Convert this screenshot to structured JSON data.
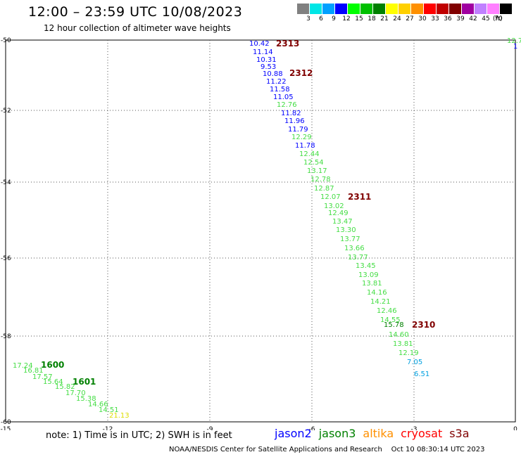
{
  "header": {
    "title": "12:00 – 23:59 UTC 10/08/2023",
    "subtitle": "12 hour collection of altimeter wave heights"
  },
  "color_scale": {
    "unit": "(ft)",
    "bins": [
      {
        "label": "3",
        "color": "#808080"
      },
      {
        "label": "6",
        "color": "#00e6e6"
      },
      {
        "label": "9",
        "color": "#00a0ff"
      },
      {
        "label": "12",
        "color": "#0000ff"
      },
      {
        "label": "15",
        "color": "#00ff00"
      },
      {
        "label": "18",
        "color": "#00c000"
      },
      {
        "label": "21",
        "color": "#008000"
      },
      {
        "label": "24",
        "color": "#ffff00"
      },
      {
        "label": "27",
        "color": "#ffd000"
      },
      {
        "label": "30",
        "color": "#ff9000"
      },
      {
        "label": "33",
        "color": "#ff0000"
      },
      {
        "label": "36",
        "color": "#c00000"
      },
      {
        "label": "39",
        "color": "#800000"
      },
      {
        "label": "42",
        "color": "#a000a0"
      },
      {
        "label": "45",
        "color": "#c080ff"
      },
      {
        "label": "70",
        "color": "#ff80ff"
      },
      {
        "label": "",
        "color": "#000000"
      }
    ]
  },
  "map": {
    "lon_ticks": [
      "-15",
      "-12",
      "-9",
      "-6",
      "-3",
      "0"
    ],
    "lat_ticks": [
      "-50",
      "-52",
      "-54",
      "-56",
      "-58",
      "-60"
    ],
    "passes": [
      {
        "label": "2313",
        "color": "#800000"
      },
      {
        "label": "2312",
        "color": "#800000"
      },
      {
        "label": "2311",
        "color": "#800000"
      },
      {
        "label": "2310",
        "color": "#800000"
      },
      {
        "label": "1600",
        "color": "#008000"
      },
      {
        "label": "1601",
        "color": "#008000"
      }
    ],
    "readings": [
      {
        "v": "10.42",
        "c": "#0000ff"
      },
      {
        "v": "11.14",
        "c": "#0000ff"
      },
      {
        "v": "10.31",
        "c": "#0000ff"
      },
      {
        "v": "9.53",
        "c": "#0000ff"
      },
      {
        "v": "10.88",
        "c": "#0000ff"
      },
      {
        "v": "11.22",
        "c": "#0000ff"
      },
      {
        "v": "11.58",
        "c": "#0000ff"
      },
      {
        "v": "11.05",
        "c": "#0000ff"
      },
      {
        "v": "12.76",
        "c": "#44dd44"
      },
      {
        "v": "11.82",
        "c": "#0000ff"
      },
      {
        "v": "11.96",
        "c": "#0000ff"
      },
      {
        "v": "11.79",
        "c": "#0000ff"
      },
      {
        "v": "12.29",
        "c": "#44dd44"
      },
      {
        "v": "11.78",
        "c": "#0000ff"
      },
      {
        "v": "12.44",
        "c": "#44dd44"
      },
      {
        "v": "12.54",
        "c": "#44dd44"
      },
      {
        "v": "13.17",
        "c": "#44dd44"
      },
      {
        "v": "12.78",
        "c": "#44dd44"
      },
      {
        "v": "12.87",
        "c": "#44dd44"
      },
      {
        "v": "12.07",
        "c": "#44dd44"
      },
      {
        "v": "13.02",
        "c": "#44dd44"
      },
      {
        "v": "12.49",
        "c": "#44dd44"
      },
      {
        "v": "13.47",
        "c": "#44dd44"
      },
      {
        "v": "13.30",
        "c": "#44dd44"
      },
      {
        "v": "13.77",
        "c": "#44dd44"
      },
      {
        "v": "13.66",
        "c": "#44dd44"
      },
      {
        "v": "13.77",
        "c": "#44dd44"
      },
      {
        "v": "13.45",
        "c": "#44dd44"
      },
      {
        "v": "13.09",
        "c": "#44dd44"
      },
      {
        "v": "13.81",
        "c": "#44dd44"
      },
      {
        "v": "14.16",
        "c": "#44dd44"
      },
      {
        "v": "14.21",
        "c": "#44dd44"
      },
      {
        "v": "12.46",
        "c": "#44dd44"
      },
      {
        "v": "14.55",
        "c": "#44dd44"
      },
      {
        "v": "15.78",
        "c": "#008000"
      },
      {
        "v": "14.60",
        "c": "#44dd44"
      },
      {
        "v": "13.81",
        "c": "#44dd44"
      },
      {
        "v": "12.19",
        "c": "#44dd44"
      },
      {
        "v": "7.05",
        "c": "#00a0e0"
      },
      {
        "v": "6.51",
        "c": "#00a0e0"
      },
      {
        "v": "17.24",
        "c": "#44dd44"
      },
      {
        "v": "16.81",
        "c": "#44dd44"
      },
      {
        "v": "17.57",
        "c": "#44dd44"
      },
      {
        "v": "15.64",
        "c": "#44dd44"
      },
      {
        "v": "15.82",
        "c": "#44dd44"
      },
      {
        "v": "17.70",
        "c": "#44dd44"
      },
      {
        "v": "15.38",
        "c": "#44dd44"
      },
      {
        "v": "14.66",
        "c": "#44dd44"
      },
      {
        "v": "14.51",
        "c": "#44dd44"
      },
      {
        "v": "21.13",
        "c": "#dddd00"
      },
      {
        "v": "12.7",
        "c": "#44dd44"
      },
      {
        "v": "1",
        "c": "#0000ff"
      }
    ]
  },
  "note": "note: 1) Time is in UTC; 2) SWH is in feet",
  "legend": [
    {
      "label": "jason2",
      "color": "#0000ff"
    },
    {
      "label": "jason3",
      "color": "#008000"
    },
    {
      "label": "altika",
      "color": "#ff9000"
    },
    {
      "label": "cryosat",
      "color": "#ff0000"
    },
    {
      "label": "s3a",
      "color": "#800000"
    }
  ],
  "footer": "NOAA/NESDIS Center for Satellite Applications and Research    Oct 10 08:30:14 UTC 2023"
}
